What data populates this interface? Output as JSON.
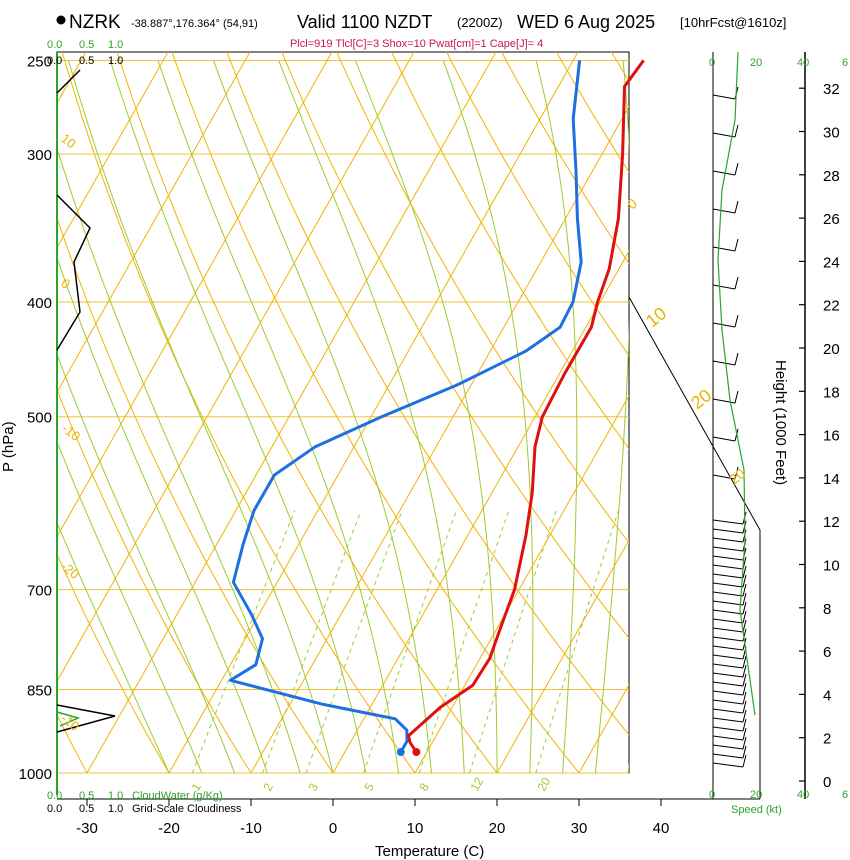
{
  "header": {
    "station": "NZRK",
    "location": "-38.887°,176.364° (54,91)",
    "valid": "Valid 1100 NZDT",
    "utc": "(2200Z)",
    "date": "WED 6 Aug 2025",
    "forecast": "[10hrFcst@1610z]",
    "indices": "Plcl=919 Tlcl[C]=3 Shox=10 Pwat[cm]=1 Cape[J]= 4"
  },
  "chart_data": {
    "type": "skew-t",
    "xlabel": "Temperature (C)",
    "ylabel": "P (hPa)",
    "y2label": "Height (1000 Feet)",
    "x_ticks": [
      "-30",
      "-20",
      "-10",
      "0",
      "10",
      "20",
      "30",
      "40"
    ],
    "x_tick_values": [
      -30,
      -20,
      -10,
      0,
      10,
      20,
      30,
      40
    ],
    "p_ticks": [
      "250",
      "300",
      "400",
      "500",
      "700",
      "850",
      "1000"
    ],
    "p_tick_values": [
      250,
      300,
      400,
      500,
      700,
      850,
      1000
    ],
    "height_ticks": [
      "0",
      "2",
      "4",
      "6",
      "8",
      "10",
      "12",
      "14",
      "16",
      "18",
      "20",
      "22",
      "24",
      "26",
      "28",
      "30",
      "32"
    ],
    "height_tick_values": [
      0,
      2,
      4,
      6,
      8,
      10,
      12,
      14,
      16,
      18,
      20,
      22,
      24,
      26,
      28,
      30,
      32
    ],
    "temperature_profile": {
      "name": "Temperature",
      "color": "#e01010",
      "points": [
        [
          8.7,
          960
        ],
        [
          7.3,
          943
        ],
        [
          6.6,
          930
        ],
        [
          8.5,
          880
        ],
        [
          10.9,
          843
        ],
        [
          11.1,
          800
        ],
        [
          10.2,
          750
        ],
        [
          9.3,
          700
        ],
        [
          6.9,
          630
        ],
        [
          4.7,
          580
        ],
        [
          1.8,
          530
        ],
        [
          0.6,
          500
        ],
        [
          0.3,
          460
        ],
        [
          0.3,
          420
        ],
        [
          -0.7,
          400
        ],
        [
          -1.6,
          375
        ],
        [
          -4.0,
          340
        ],
        [
          -8.0,
          300
        ],
        [
          -12.5,
          263
        ],
        [
          -12.0,
          250
        ]
      ]
    },
    "dewpoint_profile": {
      "name": "Dewpoint",
      "color": "#1e6fe0",
      "points": [
        [
          6.8,
          960
        ],
        [
          6.8,
          940
        ],
        [
          6.0,
          920
        ],
        [
          3.8,
          900
        ],
        [
          -6.0,
          875
        ],
        [
          -19.0,
          835
        ],
        [
          -17.0,
          810
        ],
        [
          -18.0,
          770
        ],
        [
          -21.0,
          735
        ],
        [
          -25.5,
          690
        ],
        [
          -27.0,
          640
        ],
        [
          -28.0,
          600
        ],
        [
          -28.0,
          560
        ],
        [
          -25.0,
          530
        ],
        [
          -19.0,
          500
        ],
        [
          -12.0,
          470
        ],
        [
          -6.0,
          440
        ],
        [
          -3.5,
          420
        ],
        [
          -3.7,
          400
        ],
        [
          -5.5,
          370
        ],
        [
          -9.0,
          340
        ],
        [
          -12.5,
          310
        ],
        [
          -16.5,
          280
        ],
        [
          -19.8,
          250
        ]
      ]
    },
    "isotherm_labels": [
      "0",
      "10",
      "20",
      "-10",
      "-20",
      "10",
      "0",
      "-10",
      "-20"
    ],
    "mixing_ratio_labels": [
      "1",
      "2",
      "3",
      "5",
      "8",
      "12",
      "20"
    ],
    "cloud_scale": {
      "top": [
        "0.0",
        "0.5",
        "1.0"
      ],
      "bottom": [
        "0.0",
        "0.5",
        "1.0"
      ],
      "cloud_water_label": "CloudWater (g/Kg)",
      "cloudiness_label": "Grid-Scale Cloudiness"
    },
    "wind_speed_scale": {
      "ticks": [
        "0",
        "20",
        "40",
        "6"
      ],
      "label": "Speed (kt)"
    }
  },
  "colors": {
    "isotherm": "#f0b400",
    "dry_adiabat": "#f0b400",
    "moist_adiabat": "#9ccc30",
    "mixing_ratio": "#9ccc30",
    "cloud": "#2aa52a"
  }
}
